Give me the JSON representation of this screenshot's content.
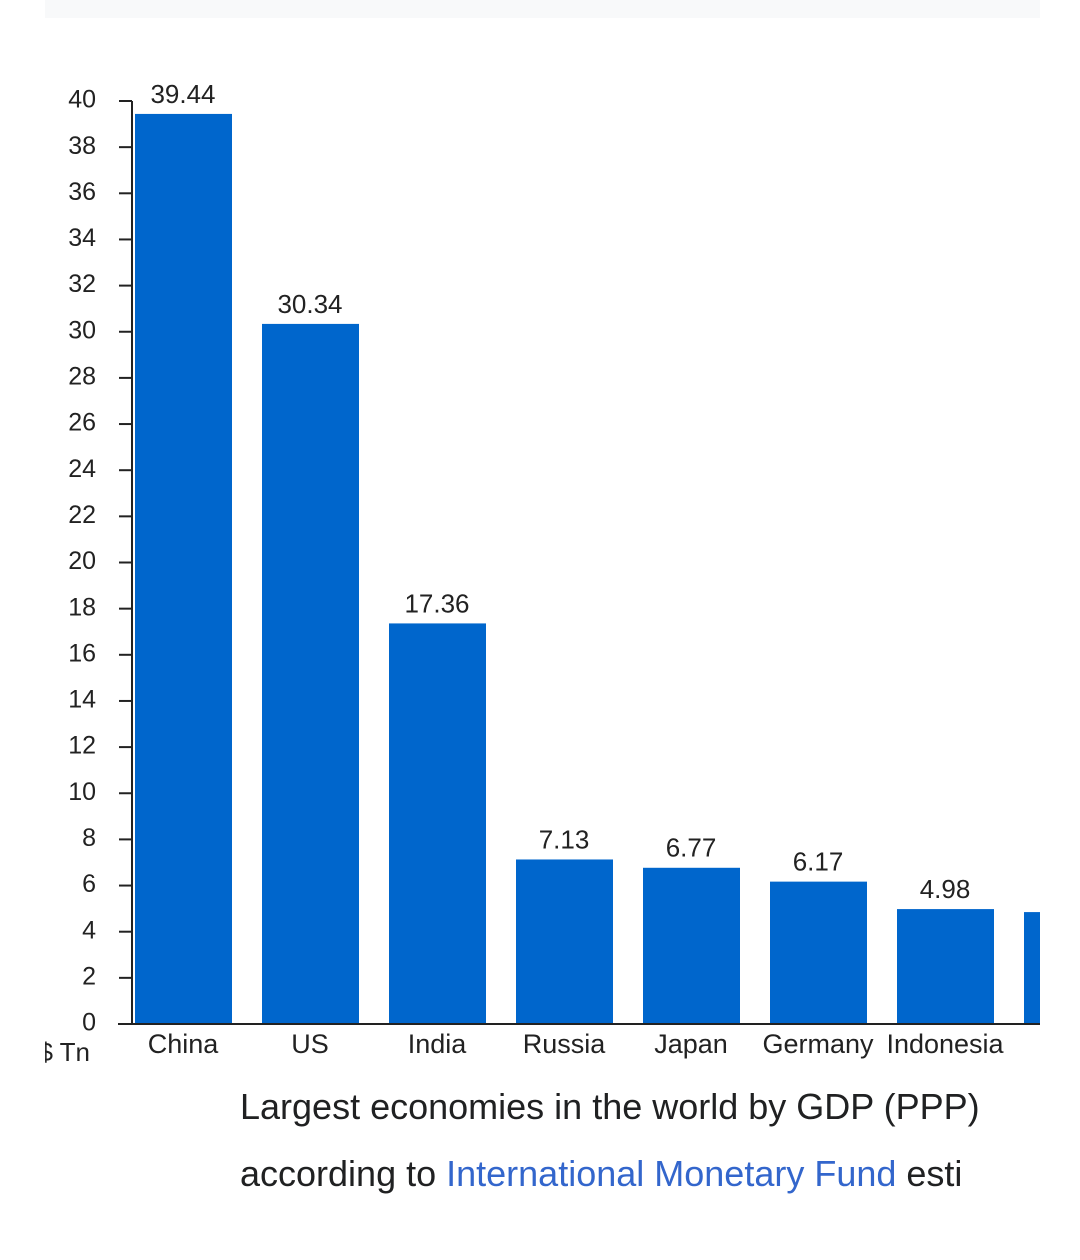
{
  "chart_data": {
    "type": "bar",
    "categories": [
      "China",
      "US",
      "India",
      "Russia",
      "Japan",
      "Germany",
      "Indonesia",
      null
    ],
    "values": [
      39.44,
      30.34,
      17.36,
      7.13,
      6.77,
      6.17,
      4.98,
      4.85
    ],
    "color": "#0066cc",
    "y_label": "$ Tn",
    "ylim": [
      0,
      40
    ],
    "yticks": [
      0,
      2,
      4,
      6,
      8,
      10,
      12,
      14,
      16,
      18,
      20,
      22,
      24,
      26,
      28,
      30,
      32,
      34,
      36,
      38,
      40
    ]
  },
  "caption": {
    "line1": "Largest economies in the world by GDP (PPP)",
    "line2_start": "according to ",
    "link": "International Monetary Fund",
    "line2_end": " esti"
  }
}
